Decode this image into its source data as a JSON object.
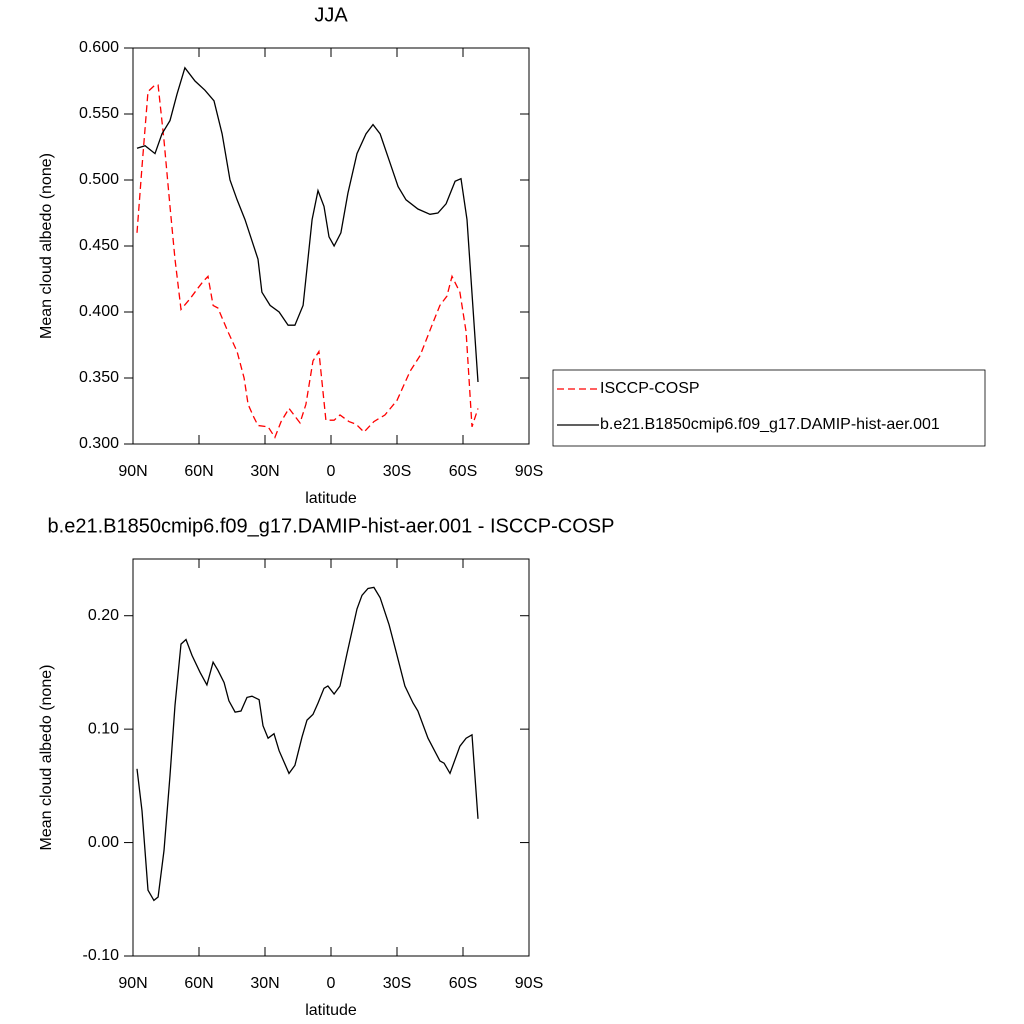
{
  "chart_data": [
    {
      "type": "line",
      "title": "JJA",
      "xlabel": "latitude",
      "ylabel": "Mean cloud albedo (none)",
      "xlim": [
        90,
        -90
      ],
      "xticks": [
        {
          "value": 90,
          "label": "90N"
        },
        {
          "value": 60,
          "label": "60N"
        },
        {
          "value": 30,
          "label": "30N"
        },
        0,
        {
          "value": -30,
          "label": "30S"
        },
        {
          "value": -60,
          "label": "60S"
        },
        {
          "value": -90,
          "label": "90S"
        }
      ],
      "ylim": [
        0.3,
        0.6
      ],
      "yticks": [
        {
          "value": 0.3,
          "label": "0.300"
        },
        {
          "value": 0.35,
          "label": "0.350"
        },
        {
          "value": 0.4,
          "label": "0.400"
        },
        {
          "value": 0.45,
          "label": "0.450"
        },
        {
          "value": 0.5,
          "label": "0.500"
        },
        {
          "value": 0.55,
          "label": "0.550"
        },
        {
          "value": 0.6,
          "label": "0.600"
        }
      ],
      "legend": "right",
      "series": [
        {
          "name": "ISCCP-COSP",
          "color": "#ff0000",
          "dash": "dashed",
          "x": [
            88.2,
            85.9,
            83.2,
            80,
            78.6,
            75.9,
            73.2,
            70.9,
            68.2,
            64.1,
            60.5,
            58.2,
            55.9,
            53.6,
            51.4,
            46.8,
            42.7,
            39.5,
            37.7,
            35,
            33.2,
            28.6,
            25.5,
            22.7,
            19.1,
            14.1,
            11.4,
            8.2,
            5.5,
            2.3,
            -1.4,
            -4.1,
            -8.2,
            -11.4,
            -15,
            -19.5,
            -24.5,
            -30,
            -35.9,
            -40.5,
            -45.9,
            -49.5,
            -52.7,
            -55,
            -58.6,
            -61.4,
            -64.1,
            -66.8
          ],
          "values": [
            0.46,
            0.51,
            0.567,
            0.572,
            0.572,
            0.53,
            0.48,
            0.44,
            0.402,
            0.41,
            0.418,
            0.423,
            0.427,
            0.405,
            0.403,
            0.385,
            0.37,
            0.35,
            0.33,
            0.32,
            0.314,
            0.313,
            0.305,
            0.317,
            0.327,
            0.316,
            0.33,
            0.363,
            0.37,
            0.318,
            0.318,
            0.322,
            0.317,
            0.315,
            0.309,
            0.317,
            0.322,
            0.333,
            0.355,
            0.367,
            0.39,
            0.405,
            0.412,
            0.427,
            0.415,
            0.385,
            0.313,
            0.327
          ]
        },
        {
          "name": "b.e21.B1850cmip6.f09_g17.DAMIP-hist-aer.001",
          "color": "#000000",
          "dash": "solid",
          "x": [
            88.2,
            84.5,
            80,
            76.8,
            73.2,
            70,
            66.4,
            61.8,
            57.3,
            53.2,
            49.5,
            45.9,
            42.7,
            39.1,
            33.2,
            31.4,
            27.7,
            23.6,
            19.5,
            16.4,
            12.7,
            8.6,
            5.9,
            3.2,
            0.9,
            -1.4,
            -4.5,
            -7.7,
            -11.8,
            -15.9,
            -19.1,
            -22.3,
            -26.4,
            -30.5,
            -34.1,
            -39.5,
            -45,
            -48.6,
            -52.3,
            -56.4,
            -59.1,
            -61.8,
            -66.8
          ],
          "values": [
            0.524,
            0.526,
            0.52,
            0.535,
            0.545,
            0.565,
            0.585,
            0.575,
            0.568,
            0.56,
            0.535,
            0.5,
            0.485,
            0.47,
            0.44,
            0.415,
            0.405,
            0.4,
            0.39,
            0.39,
            0.405,
            0.47,
            0.492,
            0.48,
            0.457,
            0.45,
            0.46,
            0.49,
            0.52,
            0.535,
            0.542,
            0.535,
            0.515,
            0.495,
            0.485,
            0.478,
            0.474,
            0.475,
            0.482,
            0.499,
            0.501,
            0.47,
            0.347
          ]
        }
      ]
    },
    {
      "type": "line",
      "title": "b.e21.B1850cmip6.f09_g17.DAMIP-hist-aer.001 - ISCCP-COSP",
      "xlabel": "latitude",
      "ylabel": "Mean cloud albedo (none)",
      "xlim": [
        90,
        -90
      ],
      "xticks": [
        {
          "value": 90,
          "label": "90N"
        },
        {
          "value": 60,
          "label": "60N"
        },
        {
          "value": 30,
          "label": "30N"
        },
        0,
        {
          "value": -30,
          "label": "30S"
        },
        {
          "value": -60,
          "label": "60S"
        },
        {
          "value": -90,
          "label": "90S"
        }
      ],
      "ylim": [
        -0.1,
        0.25
      ],
      "yticks": [
        {
          "value": -0.1,
          "label": "-0.10"
        },
        {
          "value": 0,
          "label": "0.00"
        },
        {
          "value": 0.1,
          "label": "0.10"
        },
        {
          "value": 0.2,
          "label": "0.20"
        }
      ],
      "series": [
        {
          "color": "#000000",
          "dash": "solid",
          "x": [
            88.2,
            85.9,
            83.2,
            80.5,
            78.6,
            75.9,
            73.2,
            70.9,
            68.2,
            65.9,
            63.2,
            59.5,
            56.4,
            53.6,
            51.4,
            48.6,
            46.4,
            43.6,
            40.9,
            38.2,
            35.9,
            32.7,
            30.9,
            28.6,
            25.9,
            23.6,
            19.1,
            16.4,
            13.2,
            10.9,
            8.2,
            5.9,
            3.2,
            1.4,
            -1.4,
            -4.1,
            -7.3,
            -11.8,
            -14.1,
            -16.8,
            -19.5,
            -22.3,
            -26.4,
            -29.5,
            -33.6,
            -37.3,
            -39.5,
            -44.1,
            -49.5,
            -51.4,
            -54.1,
            -58.6,
            -61.4,
            -64.1,
            -66.8
          ],
          "values": [
            0.065,
            0.028,
            -0.042,
            -0.051,
            -0.048,
            -0.007,
            0.059,
            0.121,
            0.175,
            0.179,
            0.165,
            0.15,
            0.139,
            0.159,
            0.152,
            0.141,
            0.125,
            0.115,
            0.116,
            0.128,
            0.129,
            0.126,
            0.103,
            0.092,
            0.096,
            0.081,
            0.061,
            0.068,
            0.093,
            0.108,
            0.113,
            0.123,
            0.136,
            0.138,
            0.131,
            0.138,
            0.167,
            0.206,
            0.218,
            0.224,
            0.225,
            0.216,
            0.192,
            0.169,
            0.138,
            0.123,
            0.116,
            0.092,
            0.072,
            0.07,
            0.061,
            0.085,
            0.092,
            0.095,
            0.021
          ]
        }
      ]
    }
  ]
}
